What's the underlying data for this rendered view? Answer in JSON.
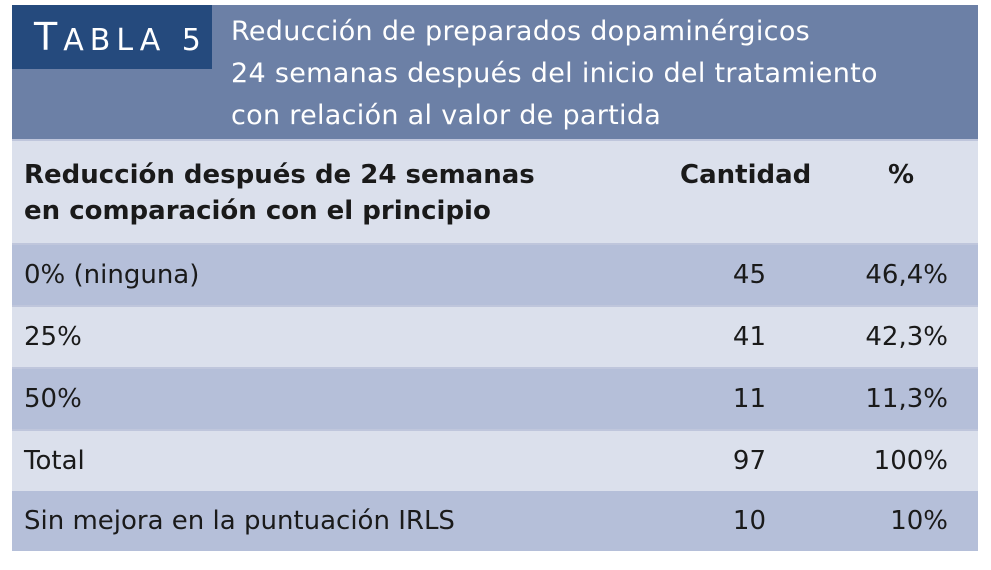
{
  "table": {
    "label_initial": "T",
    "label_rest": "ABLA 5",
    "title_lines": [
      "Reducción de preparados dopaminérgicos",
      "24 semanas después del inicio del tratamiento",
      "con relación al valor de partida"
    ],
    "columns": {
      "description_lines": [
        "Reducción después de 24 semanas",
        "en comparación con el principio"
      ],
      "quantity": "Cantidad",
      "percent": "%"
    },
    "rows": [
      {
        "description": "0% (ninguna)",
        "quantity": "45",
        "percent": "46,4%"
      },
      {
        "description": "25%",
        "quantity": "41",
        "percent": "42,3%"
      },
      {
        "description": "50%",
        "quantity": "11",
        "percent": "11,3%"
      },
      {
        "description": "Total",
        "quantity": "97",
        "percent": "100%"
      },
      {
        "description": "Sin mejora en la puntuación IRLS",
        "quantity": "10",
        "percent": "10%"
      }
    ]
  },
  "colors": {
    "header_band": "#6c80a6",
    "label_box": "#254a7d",
    "row_dark": "#b5bfd9",
    "row_light": "#dbe0ec"
  }
}
